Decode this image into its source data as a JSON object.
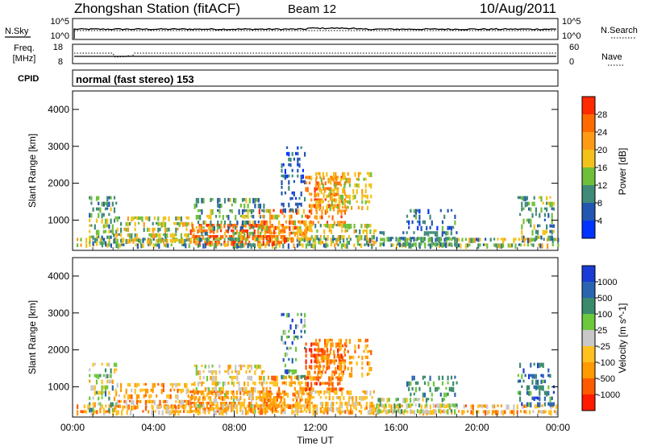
{
  "header": {
    "title": "Zhongshan Station (fitACF)",
    "beam": "Beam 12",
    "date": "10/Aug/2011"
  },
  "top_panels": {
    "nsky_label": "N.Sky",
    "nsky_ticks": [
      "10^5",
      "10^0"
    ],
    "nsearch_label": "N.Search",
    "nsearch_ticks": [
      "10^5",
      "10^0"
    ],
    "freq_label": "Freq.",
    "freq_unit": "[MHz]",
    "freq_ticks": [
      "18",
      "8"
    ],
    "nave_label": "Nave",
    "nave_ticks": [
      "60",
      "0"
    ],
    "cpid_label": "CPID",
    "cpid_text": "normal (fast stereo) 153"
  },
  "chart_data": [
    {
      "type": "heatmap",
      "title": "",
      "ylabel": "Slant Range [km]",
      "xlabel": "",
      "ylim": [
        180,
        4500
      ],
      "yticks": [
        1000,
        2000,
        3000,
        4000
      ],
      "xlim_hours": [
        0,
        24
      ],
      "colorbar": {
        "label": "Power [dB]",
        "ticks": [
          "4",
          "8",
          "12",
          "16",
          "20",
          "24",
          "28"
        ],
        "colors": [
          "#0033ff",
          "#2356b0",
          "#3f8a78",
          "#6fbf3a",
          "#f2c21a",
          "#ff9a14",
          "#ff6a00",
          "#ff2a00"
        ]
      }
    },
    {
      "type": "heatmap",
      "title": "",
      "ylabel": "Slant Range [km]",
      "xlabel": "Time UT",
      "ylim": [
        180,
        4500
      ],
      "yticks": [
        1000,
        2000,
        3000,
        4000
      ],
      "xticks": [
        "00:00",
        "04:00",
        "08:00",
        "12:00",
        "16:00",
        "20:00",
        "00:00"
      ],
      "colorbar": {
        "label": "Velocity [m s^-1]",
        "ticks": [
          "1000",
          "500",
          "100",
          "25",
          "-25",
          "-100",
          "-500",
          "-1000"
        ],
        "colors": [
          "#1a3cd6",
          "#2a64b0",
          "#3a8a6c",
          "#6cc83c",
          "#c8c8c8",
          "#ffc020",
          "#ff9a00",
          "#ff5a00",
          "#ff1a00"
        ]
      }
    }
  ]
}
